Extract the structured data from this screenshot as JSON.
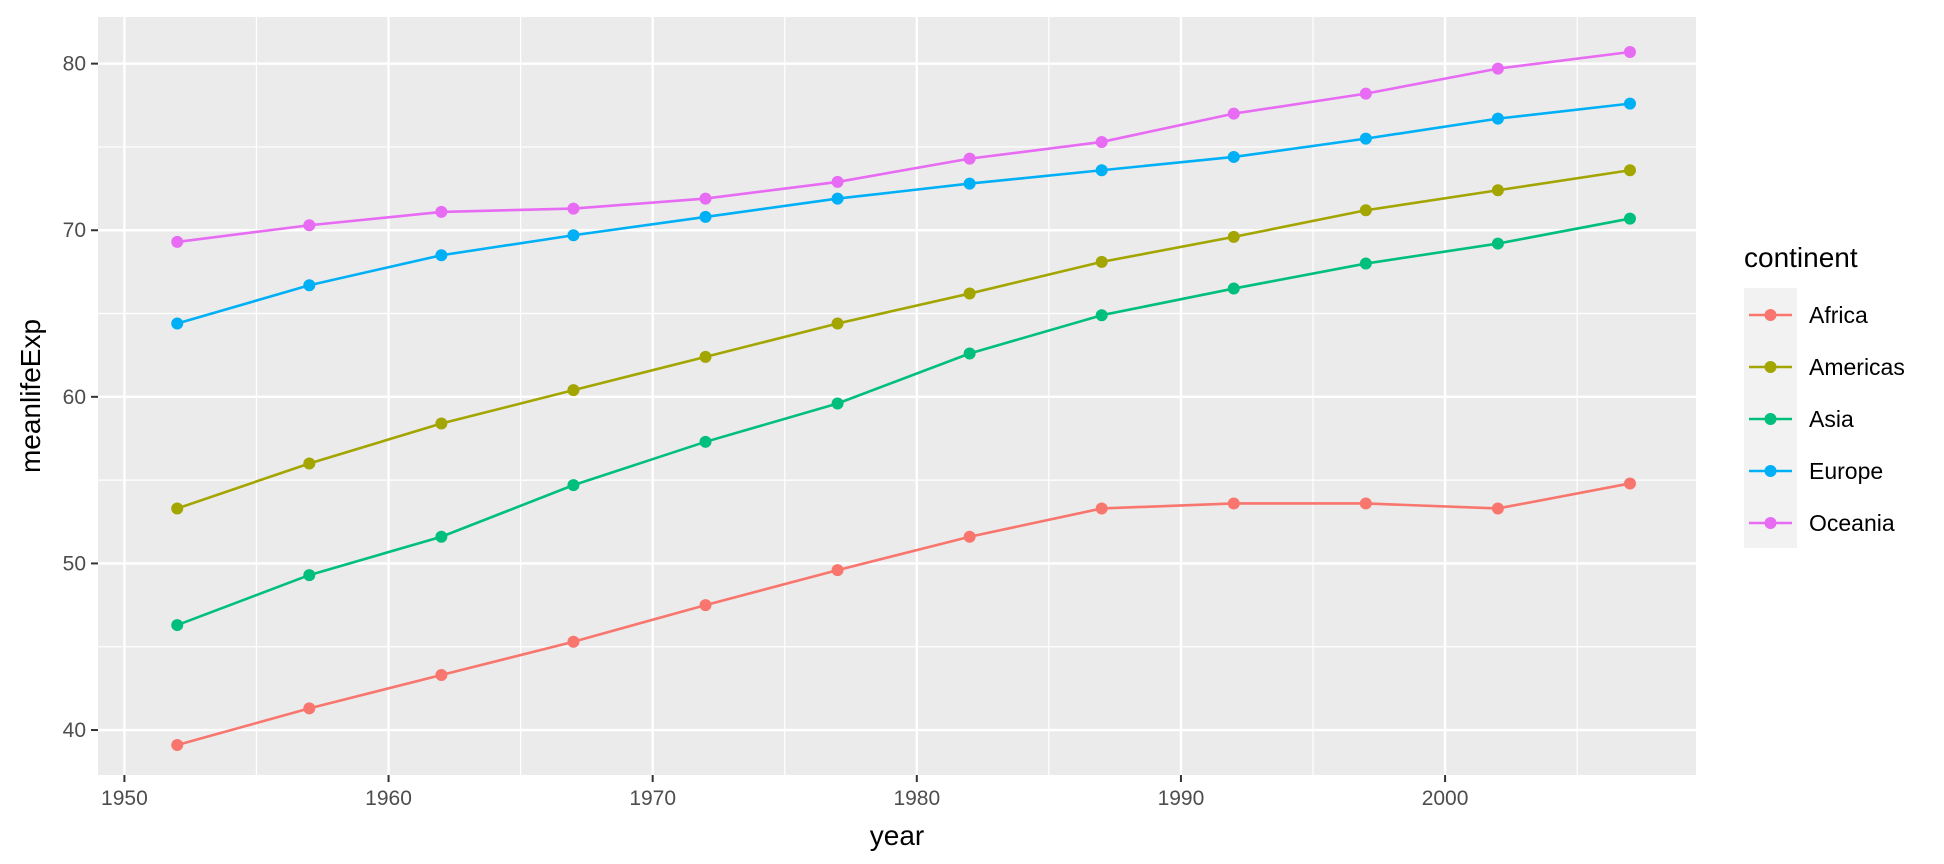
{
  "chart_data": {
    "type": "line",
    "xlabel": "year",
    "ylabel": "meanlifeExp",
    "xlim": [
      1949,
      2009.5
    ],
    "ylim": [
      37.3,
      82.8
    ],
    "x_ticks": [
      1950,
      1960,
      1970,
      1980,
      1990,
      2000
    ],
    "y_ticks": [
      40,
      50,
      60,
      70,
      80
    ],
    "grid": true,
    "legend": {
      "title": "continent",
      "position": "right"
    },
    "x": [
      1952,
      1957,
      1962,
      1967,
      1972,
      1977,
      1982,
      1987,
      1992,
      1997,
      2002,
      2007
    ],
    "series": [
      {
        "name": "Africa",
        "color": "#F8766D",
        "values": [
          39.1,
          41.3,
          43.3,
          45.3,
          47.5,
          49.6,
          51.6,
          53.3,
          53.6,
          53.6,
          53.3,
          54.8
        ]
      },
      {
        "name": "Americas",
        "color": "#A3A500",
        "values": [
          53.3,
          56.0,
          58.4,
          60.4,
          62.4,
          64.4,
          66.2,
          68.1,
          69.6,
          71.2,
          72.4,
          73.6
        ]
      },
      {
        "name": "Asia",
        "color": "#00BF7D",
        "values": [
          46.3,
          49.3,
          51.6,
          54.7,
          57.3,
          59.6,
          62.6,
          64.9,
          66.5,
          68.0,
          69.2,
          70.7
        ]
      },
      {
        "name": "Europe",
        "color": "#00B0F6",
        "values": [
          64.4,
          66.7,
          68.5,
          69.7,
          70.8,
          71.9,
          72.8,
          73.6,
          74.4,
          75.5,
          76.7,
          77.6
        ]
      },
      {
        "name": "Oceania",
        "color": "#E76BF3",
        "values": [
          69.3,
          70.3,
          71.1,
          71.3,
          71.9,
          72.9,
          74.3,
          75.3,
          77.0,
          78.2,
          79.7,
          80.7
        ]
      }
    ]
  }
}
